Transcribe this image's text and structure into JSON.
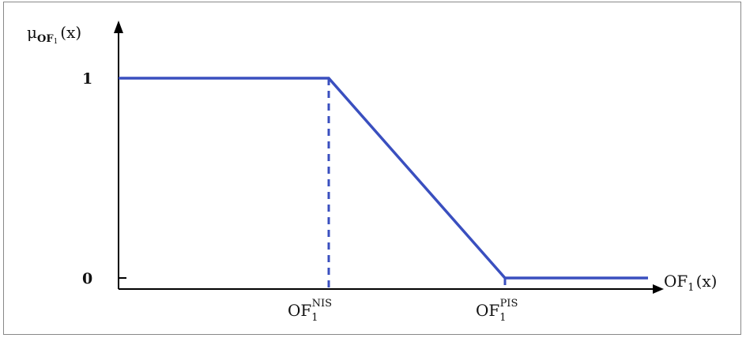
{
  "chart_data": {
    "type": "line",
    "y_axis_label": {
      "base": "μ",
      "sub_main": "OF",
      "sub_index": "1",
      "suffix": "(x)"
    },
    "x_axis_label": {
      "base": "OF",
      "sub": "1",
      "suffix": "(x)"
    },
    "y_ticks": [
      "1",
      "0"
    ],
    "x_markers": [
      {
        "base": "OF",
        "sub": "1",
        "sup": "NIS"
      },
      {
        "base": "OF",
        "sub": "1",
        "sup": "PIS"
      }
    ],
    "series": [
      {
        "points": [
          [
            0,
            1
          ],
          [
            1,
            1
          ],
          [
            2,
            0
          ],
          [
            3,
            0
          ]
        ]
      }
    ],
    "line_color": "#3a4fbf",
    "axis_color": "#000000"
  }
}
